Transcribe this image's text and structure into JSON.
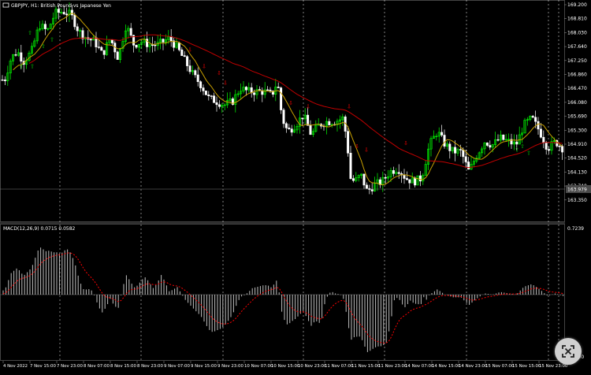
{
  "window": {
    "title": "GBPJPY, H1:  British Pound vs Japanese Yen"
  },
  "price_axis": {
    "labels": [
      "169.200",
      "168.810",
      "168.030",
      "167.640",
      "167.250",
      "166.860",
      "166.470",
      "166.080",
      "165.690",
      "165.300",
      "164.910",
      "164.520",
      "164.130",
      "163.740",
      "163.350"
    ],
    "current_price": "163.979",
    "current_price_bg": "#4a4a4a"
  },
  "macd": {
    "label": "MACD(12,26,9) 0.0715 0.0582",
    "scale_top": "0.7239",
    "scale_bottom": "-0.6800",
    "params": {
      "fast": 12,
      "slow": 26,
      "signal": 9
    },
    "value": 0.0715,
    "signal": 0.0582
  },
  "time_axis": {
    "labels": [
      "4 Nov 2022",
      "7 Nov 15:00",
      "7 Nov 23:00",
      "8 Nov 07:00",
      "8 Nov 15:00",
      "8 Nov 23:00",
      "9 Nov 07:00",
      "9 Nov 15:00",
      "9 Nov 23:00",
      "10 Nov 07:00",
      "10 Nov 15:00",
      "10 Nov 23:00",
      "11 Nov 07:00",
      "11 Nov 15:00",
      "11 Nov 23:00",
      "14 Nov 07:00",
      "14 Nov 15:00",
      "14 Nov 23:00",
      "15 Nov 07:00",
      "15 Nov 15:00",
      "15 Nov 23:00"
    ]
  },
  "colors": {
    "bull_candle": "#00ff00",
    "bear_candle": "#ffffff",
    "ma_fast": "#c8a000",
    "ma_slow": "#c00000",
    "macd_histogram": "#c0c0c0",
    "macd_signal": "#ff0000",
    "grid": "#ffffff",
    "axis_text": "#ffffff",
    "fractal_up": "#00c000",
    "fractal_down": "#ff0000"
  },
  "icons": {
    "chart": "chart-symbol-icon",
    "capture": "screenshot-icon"
  }
}
